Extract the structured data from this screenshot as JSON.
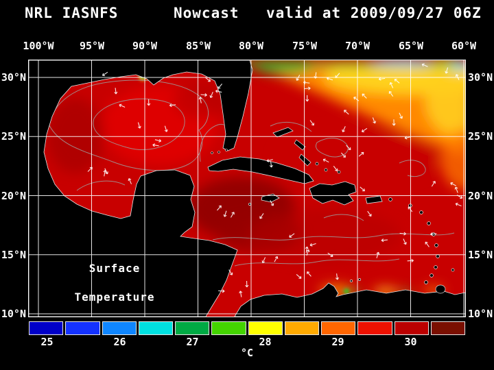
{
  "title": {
    "model": "NRL IASNFS",
    "product": "Nowcast",
    "valid": "valid at 2009/09/27 06Z"
  },
  "map": {
    "lon_labels": [
      "100°W",
      "95°W",
      "90°W",
      "85°W",
      "80°W",
      "75°W",
      "70°W",
      "65°W",
      "60°W"
    ],
    "lat_labels": [
      "30°N",
      "25°N",
      "20°N",
      "15°N",
      "10°N"
    ],
    "overlay_line1": "Surface",
    "overlay_line2": "Temperature"
  },
  "colorbar": {
    "tick_labels": [
      "25",
      "26",
      "27",
      "28",
      "29",
      "30"
    ],
    "unit": "°C",
    "segment_colors": [
      "#0000c8",
      "#1432ff",
      "#0f86ff",
      "#00e0e0",
      "#00aa44",
      "#44d400",
      "#ffff00",
      "#ffaa00",
      "#ff6600",
      "#ee1100",
      "#bb0000",
      "#7a0f00"
    ]
  },
  "chart_data": {
    "type": "heatmap",
    "title": "NRL IASNFS Nowcast valid at 2009/09/27 06Z",
    "variable": "Sea Surface Temperature",
    "unit": "°C",
    "x_ticks": [
      "100°W",
      "95°W",
      "90°W",
      "85°W",
      "80°W",
      "75°W",
      "70°W",
      "65°W",
      "60°W"
    ],
    "y_ticks": [
      "30°N",
      "25°N",
      "20°N",
      "15°N",
      "10°N"
    ],
    "colorbar": {
      "tick_values": [
        25,
        26,
        27,
        28,
        29,
        30
      ],
      "range_c": [
        24.75,
        30.75
      ],
      "segment_step_c": 0.5,
      "segment_colors": [
        "#0000c8",
        "#1432ff",
        "#0f86ff",
        "#00e0e0",
        "#00aa44",
        "#44d400",
        "#ffff00",
        "#ffaa00",
        "#ff6600",
        "#ee1100",
        "#bb0000",
        "#7a0f00"
      ]
    },
    "overlays": [
      "land mask (black, white coastlines)",
      "surface current vectors (white arrows)",
      "temperature contours (gray lines)",
      "5-degree lat/lon grid (white lines)"
    ],
    "regions_estimated_c": [
      {
        "region": "Gulf of Mexico",
        "sst_c": 29.5
      },
      {
        "region": "Northwest Caribbean",
        "sst_c": 30.5
      },
      {
        "region": "Central Caribbean",
        "sst_c": 29.5
      },
      {
        "region": "Tropical Atlantic (east of Antilles)",
        "sst_c": 29
      },
      {
        "region": "Subtropical Atlantic (northeast, orange/yellow)",
        "sst_c": 27.5
      },
      {
        "region": "Northern edge near 31°N (green/cyan)",
        "sst_c": 26
      },
      {
        "region": "Venezuela coastal upwelling (green/yellow spots)",
        "sst_c": 27.5
      }
    ]
  }
}
